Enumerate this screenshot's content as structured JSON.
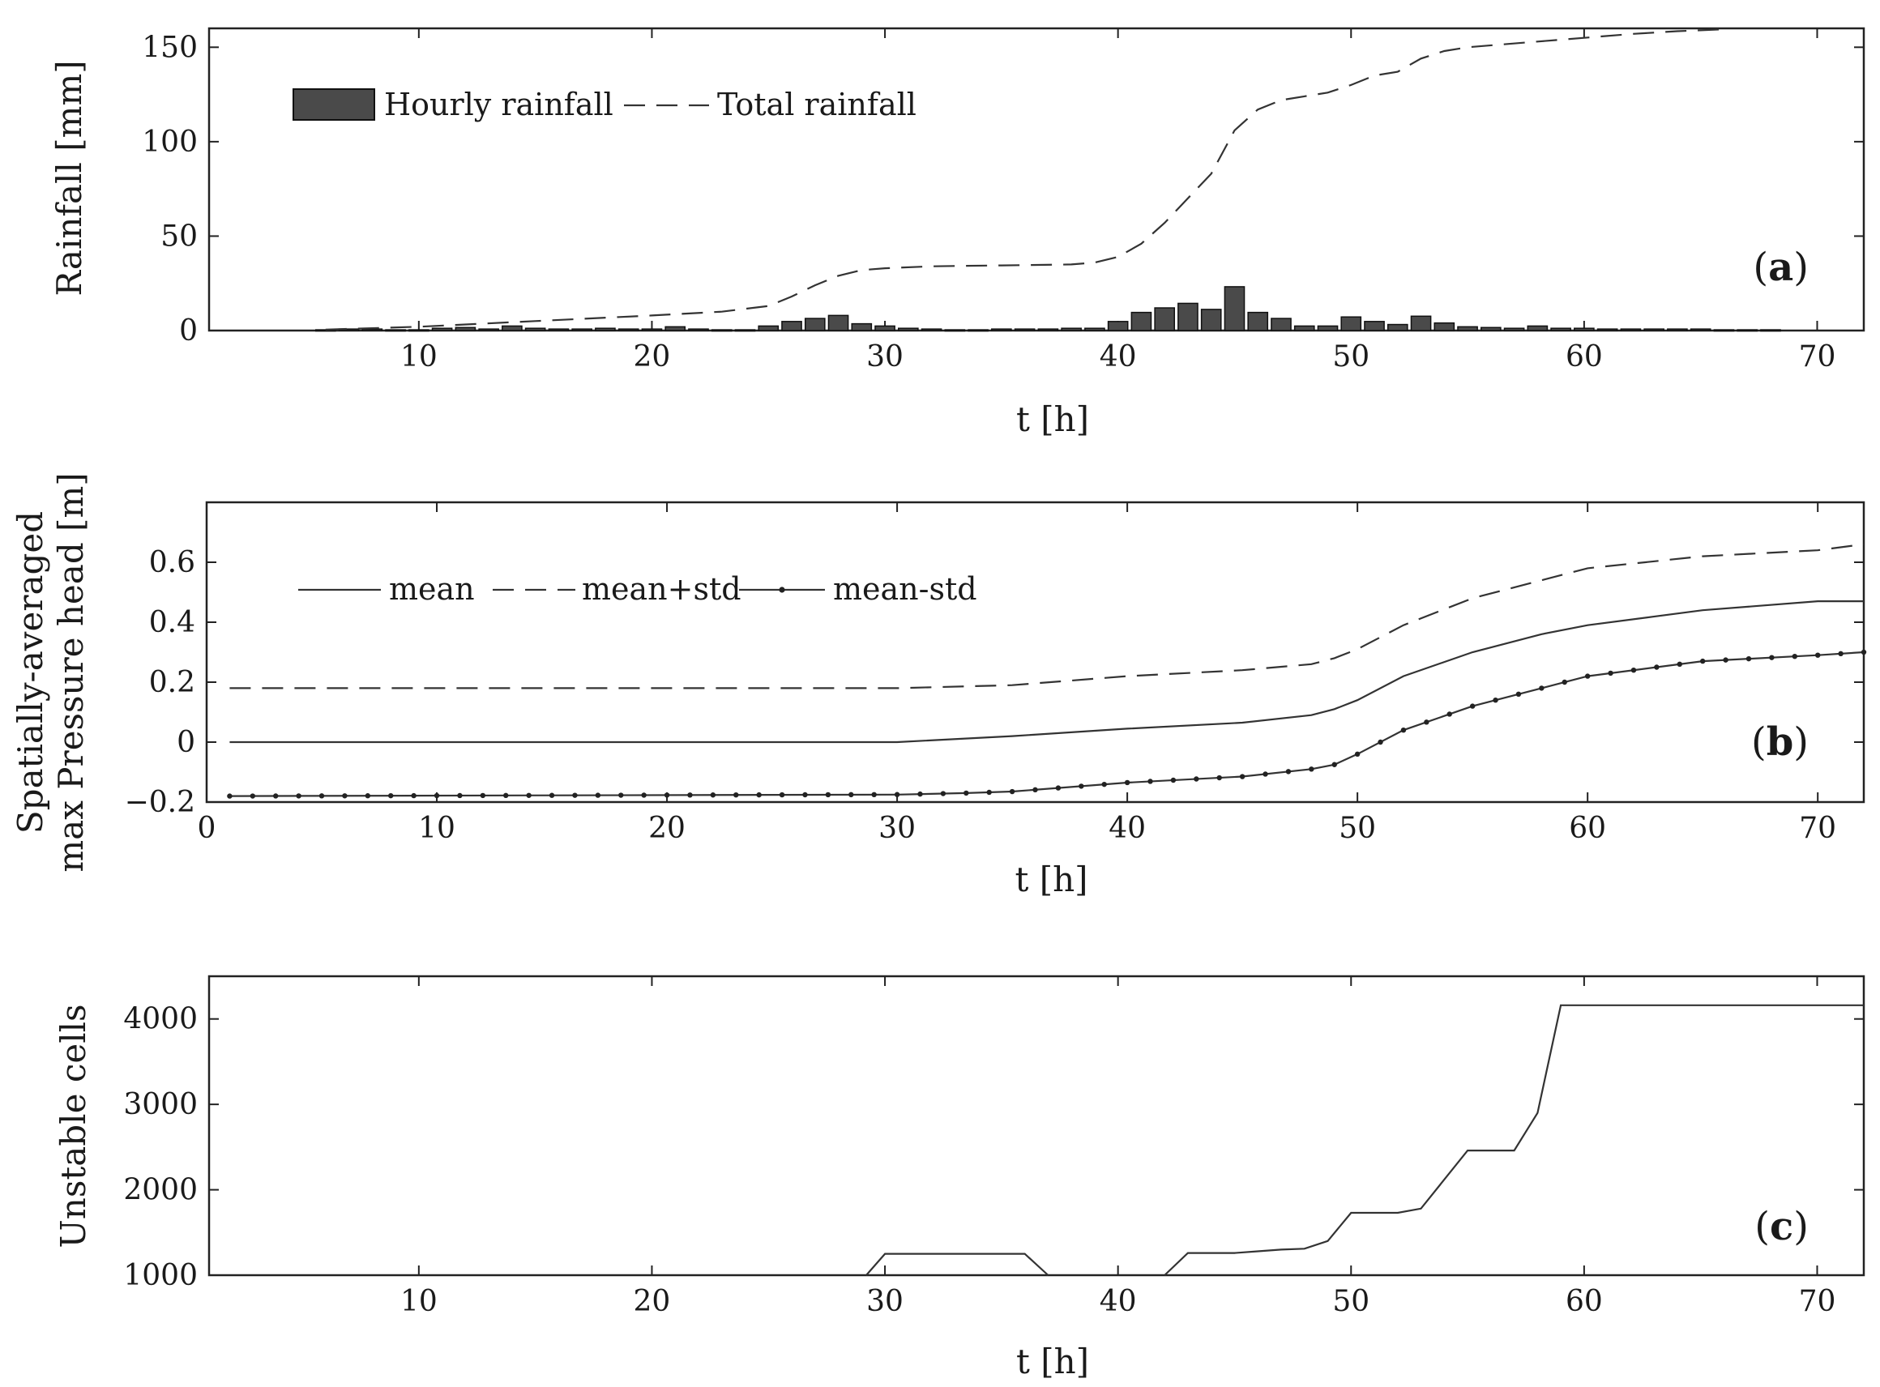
{
  "chart_data": [
    {
      "type": "bar",
      "panel_label": "(a)",
      "xlabel": "t [h]",
      "ylabel": "Rainfall [mm]",
      "xlim": [
        1,
        72
      ],
      "ylim": [
        0,
        160
      ],
      "xticks": [
        10,
        20,
        30,
        40,
        50,
        60,
        70
      ],
      "yticks": [
        0,
        50,
        100,
        150
      ],
      "grid": false,
      "legend_position": "top-left",
      "series": [
        {
          "name": "Hourly rainfall",
          "type": "bar",
          "x": [
            6,
            7,
            8,
            9,
            10,
            11,
            12,
            13,
            14,
            15,
            16,
            17,
            18,
            19,
            20,
            21,
            22,
            23,
            24,
            25,
            26,
            27,
            28,
            29,
            30,
            31,
            32,
            33,
            34,
            35,
            36,
            37,
            38,
            39,
            40,
            41,
            42,
            43,
            44,
            45,
            46,
            47,
            48,
            49,
            50,
            51,
            52,
            53,
            54,
            55,
            56,
            57,
            58,
            59,
            60,
            61,
            62,
            63,
            64,
            65,
            66,
            67,
            68
          ],
          "values": [
            0.4,
            0.8,
            0.8,
            0.4,
            0.4,
            1.2,
            1.6,
            0.8,
            2.4,
            1.2,
            0.8,
            0.8,
            1.2,
            0.8,
            0.8,
            2,
            0.8,
            0.4,
            0.4,
            2.4,
            4.8,
            6.4,
            8,
            3.6,
            2.4,
            1.2,
            0.8,
            0.4,
            0.4,
            0.8,
            0.8,
            0.8,
            1.2,
            1.2,
            4.8,
            9.6,
            12,
            14.4,
            11.2,
            23.2,
            9.6,
            6.4,
            2.4,
            2.4,
            7.2,
            4.8,
            3.2,
            7.6,
            4,
            2,
            1.6,
            1.2,
            2.4,
            1.2,
            1.2,
            0.8,
            0.8,
            0.8,
            0.8,
            0.8,
            0.4,
            0.4,
            0.4
          ]
        },
        {
          "name": "Total rainfall",
          "type": "line",
          "style": "dashed",
          "x": [
            6,
            10,
            15,
            20,
            23,
            25,
            26,
            27,
            28,
            29,
            30,
            32,
            35,
            38,
            39,
            40,
            41,
            42,
            43,
            44,
            45,
            46,
            47,
            48,
            49,
            50,
            51,
            52,
            53,
            54,
            55,
            58,
            60,
            62,
            64,
            66
          ],
          "values": [
            0.5,
            2,
            5,
            8,
            10,
            13,
            18,
            24,
            29,
            32,
            33,
            34,
            34.5,
            35,
            36,
            39,
            46,
            57,
            70,
            83,
            106,
            117,
            122,
            124,
            126,
            130,
            135,
            137,
            144,
            148,
            150,
            153,
            155,
            157,
            158.5,
            159.5
          ]
        }
      ]
    },
    {
      "type": "line",
      "panel_label": "(b)",
      "xlabel": "t [h]",
      "ylabel": "Spatially-averaged max Pressure head [m]",
      "ylabel_lines": [
        "Spatially-averaged",
        "max Pressure head [m]"
      ],
      "xlim": [
        0,
        72
      ],
      "ylim": [
        -0.2,
        0.8
      ],
      "xticks": [
        0,
        10,
        20,
        30,
        40,
        50,
        60,
        70
      ],
      "yticks": [
        -0.2,
        0,
        0.2,
        0.4,
        0.6
      ],
      "grid": false,
      "legend_position": "top-left",
      "series": [
        {
          "name": "mean",
          "style": "solid",
          "x": [
            1,
            30,
            35,
            40,
            45,
            48,
            49,
            50,
            52,
            55,
            58,
            60,
            65,
            70,
            72
          ],
          "values": [
            0,
            0,
            0.02,
            0.045,
            0.065,
            0.09,
            0.11,
            0.14,
            0.22,
            0.3,
            0.36,
            0.39,
            0.44,
            0.47,
            0.47
          ]
        },
        {
          "name": "mean+std",
          "style": "dashed",
          "x": [
            1,
            30,
            35,
            40,
            45,
            48,
            49,
            50,
            52,
            55,
            58,
            60,
            65,
            70,
            72
          ],
          "values": [
            0.18,
            0.18,
            0.19,
            0.22,
            0.24,
            0.26,
            0.28,
            0.31,
            0.39,
            0.48,
            0.54,
            0.58,
            0.62,
            0.64,
            0.66
          ]
        },
        {
          "name": "mean-std",
          "style": "solid-with-dots",
          "x": [
            1,
            30,
            33,
            35,
            40,
            45,
            48,
            49,
            50,
            52,
            55,
            58,
            60,
            65,
            70,
            72
          ],
          "values": [
            -0.18,
            -0.175,
            -0.17,
            -0.165,
            -0.135,
            -0.115,
            -0.09,
            -0.075,
            -0.04,
            0.04,
            0.12,
            0.18,
            0.22,
            0.27,
            0.29,
            0.3
          ]
        }
      ]
    },
    {
      "type": "line",
      "panel_label": "(c)",
      "xlabel": "t [h]",
      "ylabel": "Unstable cells",
      "xlim": [
        1,
        72
      ],
      "ylim": [
        1000,
        4500
      ],
      "xticks": [
        10,
        20,
        30,
        40,
        50,
        60,
        70
      ],
      "yticks": [
        1000,
        2000,
        3000,
        4000
      ],
      "grid": false,
      "series": [
        {
          "style": "solid",
          "x": [
            29.2,
            30,
            36,
            37
          ],
          "values": [
            1000,
            1250,
            1250,
            1000
          ]
        },
        {
          "style": "solid",
          "x": [
            42,
            43,
            45,
            46,
            47,
            48,
            49,
            50,
            52,
            53,
            55,
            57,
            58,
            59,
            72
          ],
          "values": [
            1000,
            1260,
            1260,
            1280,
            1300,
            1310,
            1400,
            1730,
            1730,
            1780,
            2460,
            2460,
            2900,
            4160,
            4160
          ]
        }
      ]
    }
  ]
}
